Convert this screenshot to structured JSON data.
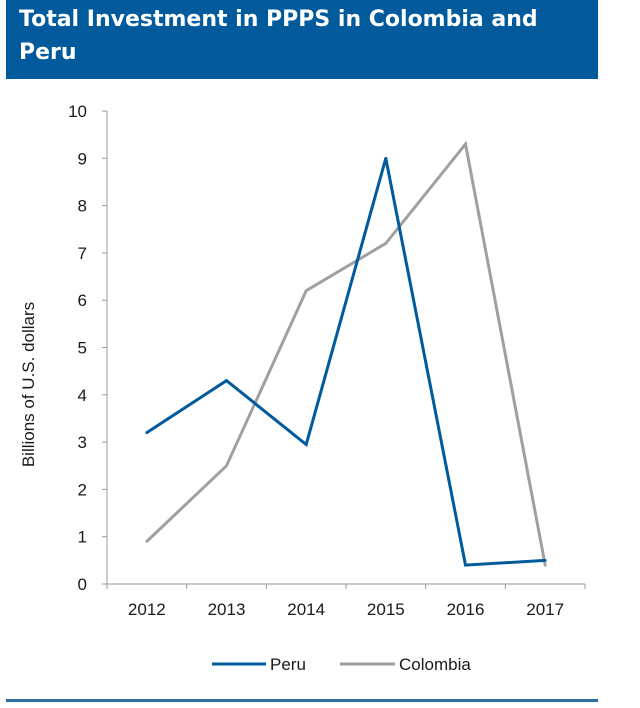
{
  "header": {
    "title": "Total Investment in PPPS in Colombia and Peru",
    "bg_color": "#005a9c"
  },
  "chart_data": {
    "type": "line",
    "title": "Total Investment in PPPS in Colombia and Peru",
    "xlabel": "",
    "ylabel": "Billions of U.S. dollars",
    "categories": [
      "2012",
      "2013",
      "2014",
      "2015",
      "2016",
      "2017"
    ],
    "ylim": [
      0,
      10
    ],
    "yticks": [
      "0",
      "1",
      "2",
      "3",
      "4",
      "5",
      "6",
      "7",
      "8",
      "9",
      "10"
    ],
    "grid": false,
    "legend_position": "bottom",
    "series": [
      {
        "name": "Peru",
        "color": "#005a9c",
        "values": [
          3.2,
          4.3,
          2.95,
          9.0,
          0.4,
          0.5
        ]
      },
      {
        "name": "Colombia",
        "color": "#a0a0a0",
        "values": [
          0.9,
          2.5,
          6.2,
          7.2,
          9.3,
          0.4
        ]
      }
    ]
  }
}
